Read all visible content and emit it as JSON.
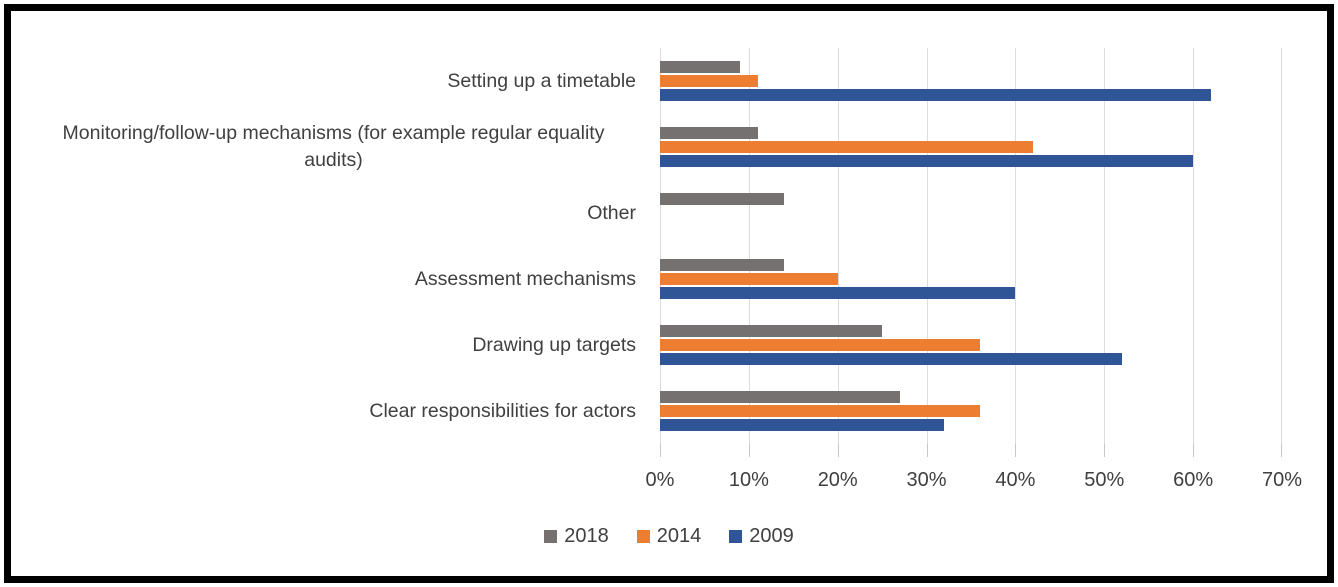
{
  "chart_data": {
    "type": "bar",
    "orientation": "horizontal",
    "title": "",
    "xlabel": "",
    "ylabel": "",
    "xlim": [
      0,
      70
    ],
    "grid": true,
    "legend_position": "bottom",
    "categories": [
      "Setting up a timetable",
      "Monitoring/follow-up mechanisms (for example regular equality audits)",
      "Other",
      "Assessment mechanisms",
      "Drawing up targets",
      "Clear responsibilities for actors"
    ],
    "series": [
      {
        "name": "2018",
        "color": "#767171",
        "values": [
          9,
          11,
          14,
          14,
          25,
          27
        ]
      },
      {
        "name": "2014",
        "color": "#ED7D31",
        "values": [
          11,
          42,
          0,
          20,
          36,
          36
        ]
      },
      {
        "name": "2009",
        "color": "#2F5597",
        "values": [
          62,
          60,
          0,
          40,
          52,
          32
        ]
      }
    ],
    "x_tick_labels": [
      "0%",
      "10%",
      "20%",
      "30%",
      "40%",
      "50%",
      "60%",
      "70%"
    ],
    "colors": {
      "gridline": "#dcdcdc",
      "tick_mark": "#c9c7c7",
      "axis_text": "#3f3f3f",
      "category_text": "#404040",
      "frame_border": "#000000"
    }
  }
}
